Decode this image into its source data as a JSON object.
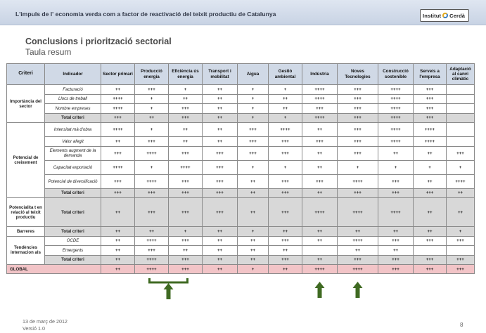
{
  "header": {
    "title": "L'impuls de l' economia verda com a factor de  reactivació del teixit productiu de Catalunya"
  },
  "logo": {
    "text_left": "Institut",
    "text_right": "Cerdà"
  },
  "page": {
    "title": "Conclusions i priorització sectorial",
    "subtitle": "Taula resum"
  },
  "table": {
    "headers": [
      "Criteri",
      "Indicador",
      "Sector primari",
      "Producció energia",
      "Eficiència ús energia",
      "Transport i mobilitat",
      "Aigua",
      "Gestió ambiental",
      "Indústria",
      "Noves Tecnologies",
      "Construcció sostenible",
      "Serveis a l'empresa",
      "Adaptació al canvi climàtic"
    ],
    "groups": [
      {
        "criteri": "Importància del sector",
        "rows": [
          {
            "indicador": "Facturació",
            "values": [
              "++",
              "+++",
              "+",
              "++",
              "+",
              "+",
              "++++",
              "+++",
              "++++",
              "+++",
              ""
            ]
          },
          {
            "indicador": "Llocs de treball",
            "values": [
              "++++",
              "+",
              "++",
              "++",
              "+",
              "++",
              "++++",
              "+++",
              "++++",
              "+++",
              ""
            ]
          },
          {
            "indicador": "Nombre empreses",
            "values": [
              "++++",
              "+",
              "+++",
              "++",
              "+",
              "++",
              "+++",
              "+++",
              "++++",
              "+++",
              ""
            ]
          },
          {
            "indicador": "Total criteri",
            "total": true,
            "values": [
              "+++",
              "++",
              "+++",
              "++",
              "+",
              "+",
              "++++",
              "+++",
              "++++",
              "+++",
              ""
            ]
          }
        ]
      },
      {
        "criteri": "Potencial de creixement",
        "rows": [
          {
            "indicador": "Intensitat mà d'obra",
            "values": [
              "++++",
              "+",
              "++",
              "++",
              "+++",
              "++++",
              "++",
              "+++",
              "++++",
              "++++",
              ""
            ]
          },
          {
            "indicador": "Valor afegit",
            "values": [
              "++",
              "+++",
              "++",
              "++",
              "+++",
              "+++",
              "+++",
              "+++",
              "++++",
              "++++",
              ""
            ]
          },
          {
            "indicador": "Elements augment de la demanda",
            "values": [
              "+++",
              "++++",
              "+++",
              "+++",
              "+++",
              "+++",
              "++",
              "+++",
              "++",
              "++",
              "+++"
            ]
          },
          {
            "indicador": "Capacitat exportació",
            "values": [
              "++++",
              "+",
              "++++",
              "+++",
              "+",
              "+",
              "++",
              "+",
              "+",
              "+",
              "+"
            ]
          },
          {
            "indicador": "Potencial de diversificació",
            "values": [
              "+++",
              "++++",
              "+++",
              "+++",
              "++",
              "+++",
              "+++",
              "++++",
              "+++",
              "++",
              "++++"
            ]
          },
          {
            "indicador": "Total criteri",
            "total": true,
            "values": [
              "+++",
              "+++",
              "+++",
              "+++",
              "++",
              "+++",
              "++",
              "+++",
              "+++",
              "+++",
              "++"
            ]
          }
        ]
      },
      {
        "criteri": "Potencialita t en relació al teixit productiu",
        "single": true,
        "rows": [
          {
            "indicador": "Total criteri",
            "values": [
              "++",
              "+++",
              "+++",
              "+++",
              "++",
              "+++",
              "++++",
              "++++",
              "++++",
              "++",
              "++"
            ]
          }
        ]
      },
      {
        "criteri": "Barreres",
        "single": true,
        "rows": [
          {
            "indicador": "Total criteri",
            "values": [
              "++",
              "++",
              "+",
              "++",
              "+",
              "++",
              "++",
              "++",
              "++",
              "++",
              "+"
            ]
          }
        ]
      },
      {
        "criteri": "Tendències internacion als",
        "rows": [
          {
            "indicador": "OCDE",
            "values": [
              "++",
              "++++",
              "+++",
              "++",
              "++",
              "+++",
              "++",
              "++++",
              "+++",
              "+++",
              "+++"
            ]
          },
          {
            "indicador": "Emergents",
            "values": [
              "++",
              "+++",
              "++",
              "++",
              "++",
              "++",
              "",
              "++",
              "++",
              "",
              ""
            ]
          },
          {
            "indicador": "Total criteri",
            "total": true,
            "values": [
              "++",
              "++++",
              "+++",
              "++",
              "++",
              "+++",
              "++",
              "+++",
              "+++",
              "+++",
              "+++"
            ]
          }
        ]
      }
    ],
    "global": {
      "label": "GLOBAL",
      "values": [
        "++",
        "++++",
        "+++",
        "++",
        "+",
        "++",
        "++++",
        "++++",
        "+++",
        "+++",
        "+++"
      ]
    }
  },
  "highlight": {
    "color": "#3f6a22",
    "note_icons": [
      "bracket-arrow-icon",
      "arrow-up-icon",
      "arrow-up-icon"
    ]
  },
  "footer": {
    "date": "13 de març de 2012",
    "version": "Versió 1.0",
    "page_number": "8"
  }
}
